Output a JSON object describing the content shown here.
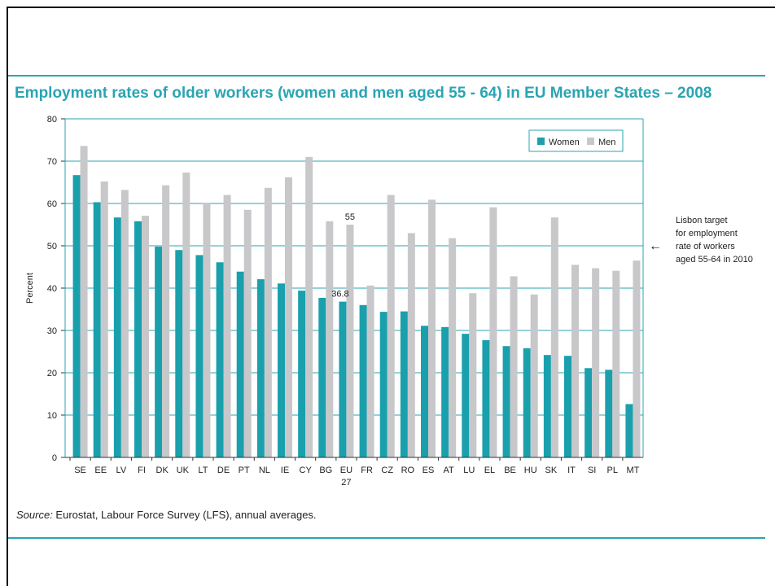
{
  "page": {
    "title": "Employment rates of older workers (women and men aged 55 - 64) in EU Member States – 2008",
    "source_label": "Source:",
    "source_text": " Eurostat, Labour Force Survey (LFS), annual averages."
  },
  "colors": {
    "women": "#1aa0ac",
    "men": "#c8c8cb",
    "grid": "#2aa4b2",
    "text": "#222222",
    "accent": "#2aa4b2"
  },
  "chart_data": {
    "type": "bar",
    "ylabel": "Percent",
    "ylim": [
      0,
      80
    ],
    "yticks": [
      0,
      10,
      20,
      30,
      40,
      50,
      60,
      70,
      80
    ],
    "grid": true,
    "legend_position": "top-right",
    "categories": [
      "SE",
      "EE",
      "LV",
      "FI",
      "DK",
      "UK",
      "LT",
      "DE",
      "PT",
      "NL",
      "IE",
      "CY",
      "BG",
      "EU\n27",
      "FR",
      "CZ",
      "RO",
      "ES",
      "AT",
      "LU",
      "EL",
      "BE",
      "HU",
      "SK",
      "IT",
      "SI",
      "PL",
      "MT"
    ],
    "series": [
      {
        "name": "Women",
        "values": [
          66.7,
          60.3,
          56.7,
          55.8,
          49.8,
          49.0,
          47.8,
          46.1,
          43.9,
          42.1,
          41.1,
          39.4,
          37.7,
          36.8,
          36.0,
          34.4,
          34.5,
          31.1,
          30.8,
          29.2,
          27.7,
          26.3,
          25.8,
          24.2,
          24.0,
          21.1,
          20.7,
          12.6
        ]
      },
      {
        "name": "Men",
        "values": [
          73.6,
          65.2,
          63.2,
          57.1,
          64.3,
          67.3,
          60.2,
          62.0,
          58.5,
          63.7,
          66.2,
          71.0,
          55.8,
          55.0,
          40.6,
          62.0,
          53.0,
          60.9,
          51.8,
          38.8,
          59.1,
          42.8,
          38.5,
          56.7,
          45.5,
          44.7,
          44.1,
          46.5
        ]
      }
    ],
    "data_labels": [
      {
        "category": "EU\n27",
        "series": "Women",
        "text": "36.8"
      },
      {
        "category": "EU\n27",
        "series": "Men",
        "text": "55"
      }
    ],
    "annotation": {
      "value": 50,
      "arrow": "←",
      "lines": [
        "Lisbon target",
        "for  employment",
        "rate of workers",
        "aged 55-64 in 2010"
      ]
    }
  }
}
